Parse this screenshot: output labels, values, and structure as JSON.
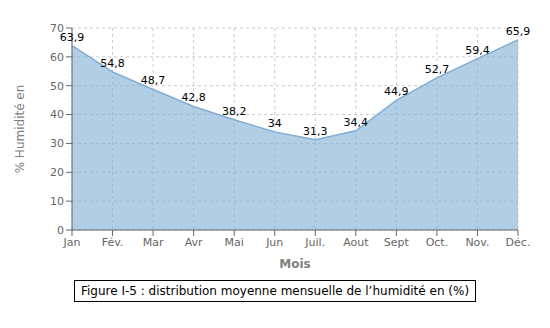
{
  "chart_data": {
    "type": "area",
    "title": "Figure I-5 : distribution moyenne mensuelle de l’humidité en (%)",
    "categories": [
      "Jan",
      "Fév.",
      "Mar",
      "Avr",
      "Mai",
      "Jun",
      "Juil.",
      "Aout",
      "Sept",
      "Oct.",
      "Nov.",
      "Déc."
    ],
    "values": [
      63.9,
      54.8,
      48.7,
      42.8,
      38.2,
      34.0,
      31.3,
      34.4,
      44.9,
      52.7,
      59.4,
      65.9
    ],
    "value_labels": [
      "63,9",
      "54,8",
      "48,7",
      "42,8",
      "38,2",
      "34",
      "31,3",
      "34,4",
      "44,9",
      "52,7",
      "59,4",
      "65,9"
    ],
    "data_labels": true,
    "color": "#7fadd4",
    "x_label": "Mois",
    "y_label": "% Humidité en",
    "ylim": [
      0,
      70
    ],
    "yticks": [
      0,
      10,
      20,
      30,
      40,
      50,
      60,
      70
    ],
    "grid": true
  }
}
